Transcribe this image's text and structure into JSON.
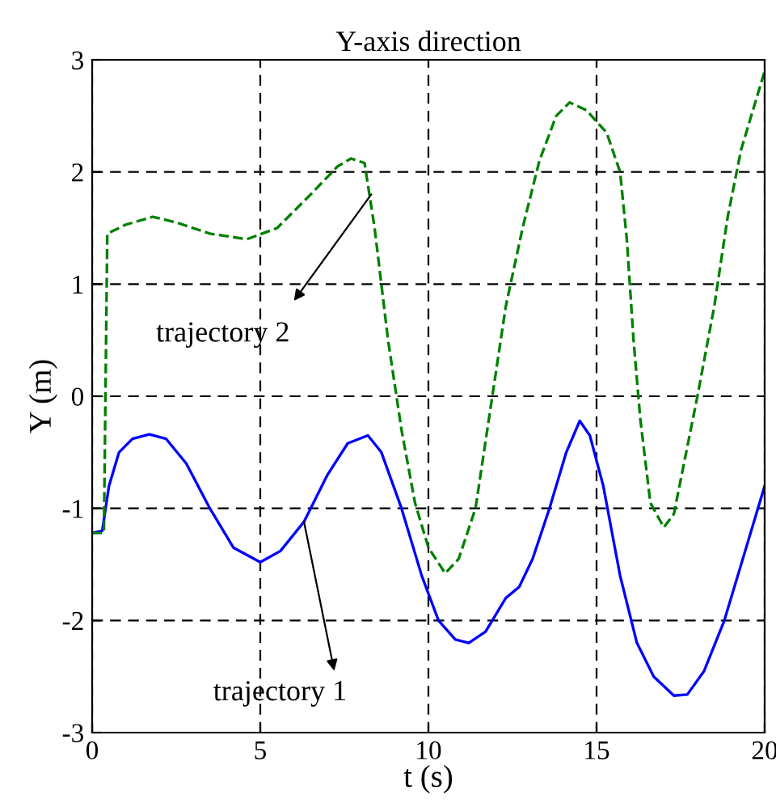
{
  "chart_data": {
    "type": "line",
    "title": "Y-axis direction",
    "xlabel": "t (s)",
    "ylabel": "Y (m)",
    "xlim": [
      0,
      20
    ],
    "ylim": [
      -3,
      3
    ],
    "xticks": [
      0,
      5,
      10,
      15,
      20
    ],
    "yticks": [
      -3,
      -2,
      -1,
      0,
      1,
      2,
      3
    ],
    "grid": true,
    "legend": false,
    "marker": "none",
    "series": [
      {
        "color": "#0000ff",
        "line_style": "solid",
        "x": [
          0,
          0.3,
          0.5,
          0.8,
          1.2,
          1.7,
          2.2,
          2.8,
          3.5,
          4.2,
          5,
          5.6,
          6.3,
          7,
          7.6,
          8.2,
          8.6,
          9.2,
          9.8,
          10.3,
          10.8,
          11.2,
          11.7,
          12.3,
          12.7,
          13.1,
          13.6,
          14.1,
          14.5,
          14.8,
          15.2,
          15.7,
          16.2,
          16.7,
          17.3,
          17.7,
          18.2,
          18.8,
          19.4,
          20
        ],
        "values": [
          -1.22,
          -1.2,
          -0.8,
          -0.5,
          -0.38,
          -0.34,
          -0.38,
          -0.6,
          -1.0,
          -1.35,
          -1.48,
          -1.38,
          -1.12,
          -0.7,
          -0.42,
          -0.35,
          -0.5,
          -1.0,
          -1.6,
          -2.0,
          -2.17,
          -2.2,
          -2.1,
          -1.8,
          -1.7,
          -1.45,
          -1.0,
          -0.5,
          -0.22,
          -0.35,
          -0.8,
          -1.6,
          -2.2,
          -2.5,
          -2.67,
          -2.66,
          -2.45,
          -2.0,
          -1.4,
          -0.8
        ]
      },
      {
        "color": "#008000",
        "line_style": "dashed",
        "x": [
          0,
          0.35,
          0.45,
          1,
          1.8,
          2.5,
          3.5,
          4.6,
          5.5,
          6.5,
          7.3,
          7.7,
          8.1,
          8.4,
          8.8,
          9.2,
          9.6,
          10.0,
          10.5,
          10.9,
          11.4,
          11.9,
          12.3,
          12.8,
          13.3,
          13.8,
          14.2,
          14.7,
          15.3,
          15.7,
          15.9,
          16.1,
          16.3,
          16.6,
          17.0,
          17.3,
          17.6,
          18.0,
          18.5,
          18.9,
          19.3,
          20
        ],
        "values": [
          -1.22,
          -1.22,
          1.45,
          1.53,
          1.6,
          1.55,
          1.45,
          1.4,
          1.5,
          1.8,
          2.05,
          2.12,
          2.08,
          1.5,
          0.5,
          -0.3,
          -0.95,
          -1.35,
          -1.58,
          -1.45,
          -1.0,
          0.0,
          0.8,
          1.5,
          2.1,
          2.5,
          2.62,
          2.55,
          2.35,
          2.0,
          1.4,
          0.5,
          -0.2,
          -0.95,
          -1.17,
          -1.05,
          -0.6,
          0.0,
          0.8,
          1.6,
          2.2,
          2.9
        ]
      }
    ],
    "annotations": [
      {
        "text": "trajectory 2",
        "x": 8.3,
        "y": 1.8
      },
      {
        "text": "trajectory 1",
        "x": 6.3,
        "y": -1.12
      }
    ]
  }
}
